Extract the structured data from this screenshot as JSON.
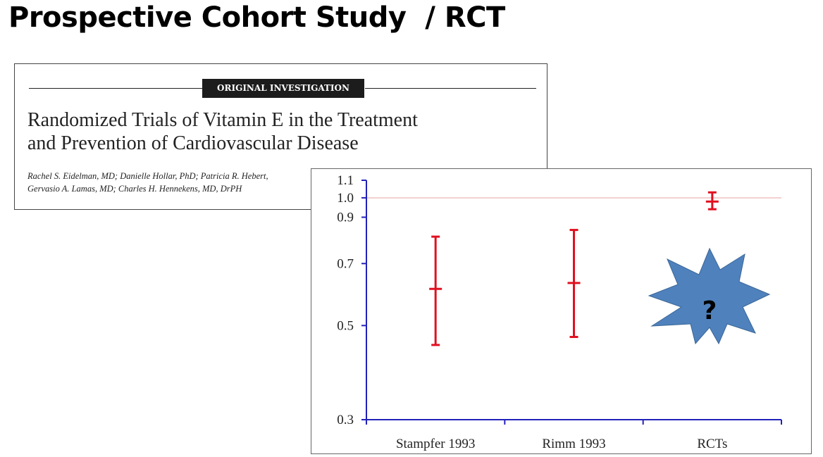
{
  "slide": {
    "title": "Prospective Cohort Study  / RCT"
  },
  "paper": {
    "badge": "ORIGINAL INVESTIGATION",
    "title_line1": "Randomized Trials of Vitamin E in the Treatment",
    "title_line2": "and Prevention of Cardiovascular Disease",
    "authors_line1": "Rachel S. Eidelman, MD; Danielle Hollar, PhD; Patricia R. Hebert,",
    "authors_line2": "Gervasio A. Lamas, MD; Charles H. Hennekens, MD, DrPH"
  },
  "starburst": {
    "text": "?",
    "color": "#4f81bd"
  },
  "chart_data": {
    "type": "errorbar",
    "categories": [
      "Stampfer 1993",
      "Rimm 1993",
      "RCTs"
    ],
    "values": [
      0.61,
      0.63,
      0.98
    ],
    "lower": [
      0.45,
      0.47,
      0.94
    ],
    "upper": [
      0.81,
      0.84,
      1.03
    ],
    "yticks": [
      "0.3",
      "0.5",
      "0.7",
      "0.9",
      "1.0",
      "1.1"
    ],
    "ylim": [
      0.3,
      1.1
    ],
    "yscale": "log",
    "reference_line": 1.0,
    "colors": {
      "axis": "#2222bb",
      "bars": "#e01020",
      "reference": "#e8a0a0"
    },
    "grid": false
  }
}
